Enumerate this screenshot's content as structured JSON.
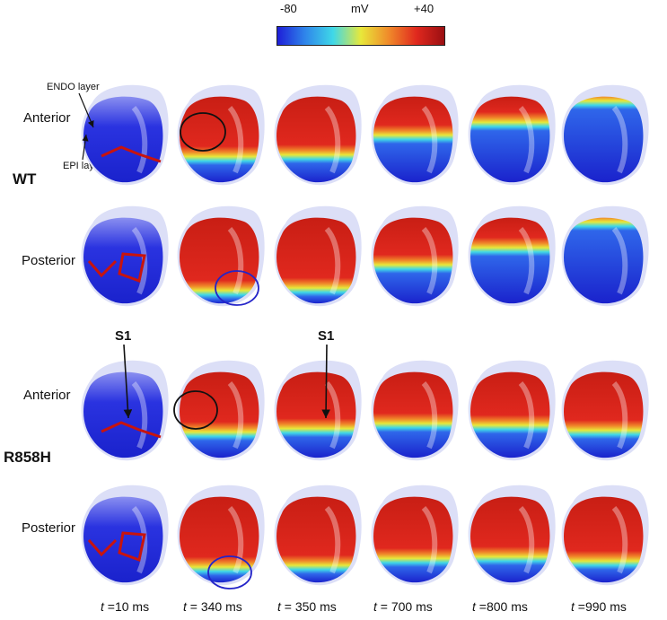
{
  "colorbar": {
    "min_label": "-80",
    "unit_label": "mV",
    "max_label": "+40",
    "colors": [
      "#1e1ed8",
      "#2f86ea",
      "#3fd8e8",
      "#e8e83a",
      "#f08a2a",
      "#e0281e",
      "#9a0f12"
    ]
  },
  "groups": [
    {
      "label": "WT"
    },
    {
      "label": "R858H"
    }
  ],
  "rows": {
    "anterior": "Anterior",
    "posterior": "Posterior"
  },
  "annotations": {
    "endo": "ENDO layer",
    "epi": "EPI layer",
    "s1": "S1"
  },
  "times": [
    {
      "prefix": "t",
      "value": " =10 ms"
    },
    {
      "prefix": "t",
      "value": " = 340 ms"
    },
    {
      "prefix": "t",
      "value": " = 350 ms"
    },
    {
      "prefix": "t",
      "value": " = 700 ms"
    },
    {
      "prefix": "t",
      "value": " =800 ms"
    },
    {
      "prefix": "t",
      "value": " =990 ms"
    }
  ]
}
